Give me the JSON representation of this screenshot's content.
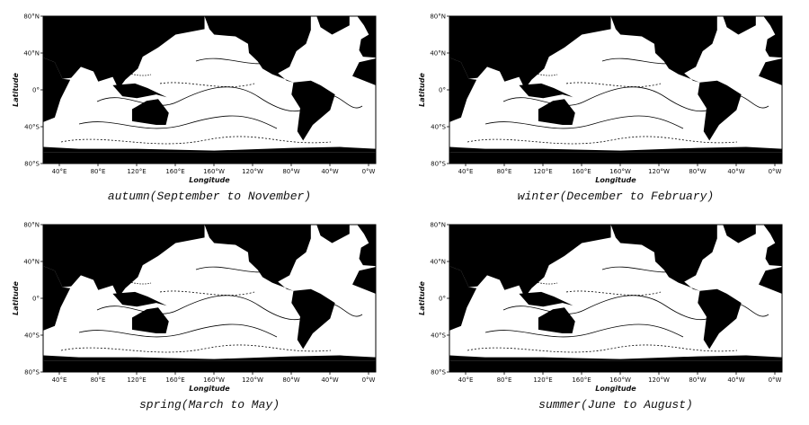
{
  "panels": [
    {
      "caption": "autumn(September to November)",
      "x_axis_label": "Longitude",
      "y_axis_label": "Latitude",
      "x_tick_labels": [
        "40°E",
        "80°E",
        "120°E",
        "160°E",
        "160°W",
        "120°W",
        "80°W",
        "40°W",
        "0°W"
      ],
      "y_tick_labels": [
        "80°N",
        "40°N",
        "0°",
        "40°S",
        "80°S"
      ]
    },
    {
      "caption": "winter(December to February)",
      "x_axis_label": "Longitude",
      "y_axis_label": "Latitude",
      "x_tick_labels": [
        "40°E",
        "80°E",
        "120°E",
        "160°E",
        "160°W",
        "120°W",
        "80°W",
        "40°W",
        "0°W"
      ],
      "y_tick_labels": [
        "80°N",
        "40°N",
        "0°",
        "40°S",
        "80°S"
      ]
    },
    {
      "caption": "spring(March to May)",
      "x_axis_label": "Longitude",
      "y_axis_label": "Latitude",
      "x_tick_labels": [
        "40°E",
        "80°E",
        "120°E",
        "160°E",
        "160°W",
        "120°W",
        "80°W",
        "40°W",
        "0°W"
      ],
      "y_tick_labels": [
        "80°N",
        "40°N",
        "0°",
        "40°S",
        "80°S"
      ]
    },
    {
      "caption": "summer(June to August)",
      "x_axis_label": "Longitude",
      "y_axis_label": "Latitude",
      "x_tick_labels": [
        "40°E",
        "80°E",
        "120°E",
        "160°E",
        "160°W",
        "120°W",
        "80°W",
        "40°W",
        "0°W"
      ],
      "y_tick_labels": [
        "80°N",
        "40°N",
        "0°",
        "40°S",
        "80°S"
      ]
    }
  ]
}
